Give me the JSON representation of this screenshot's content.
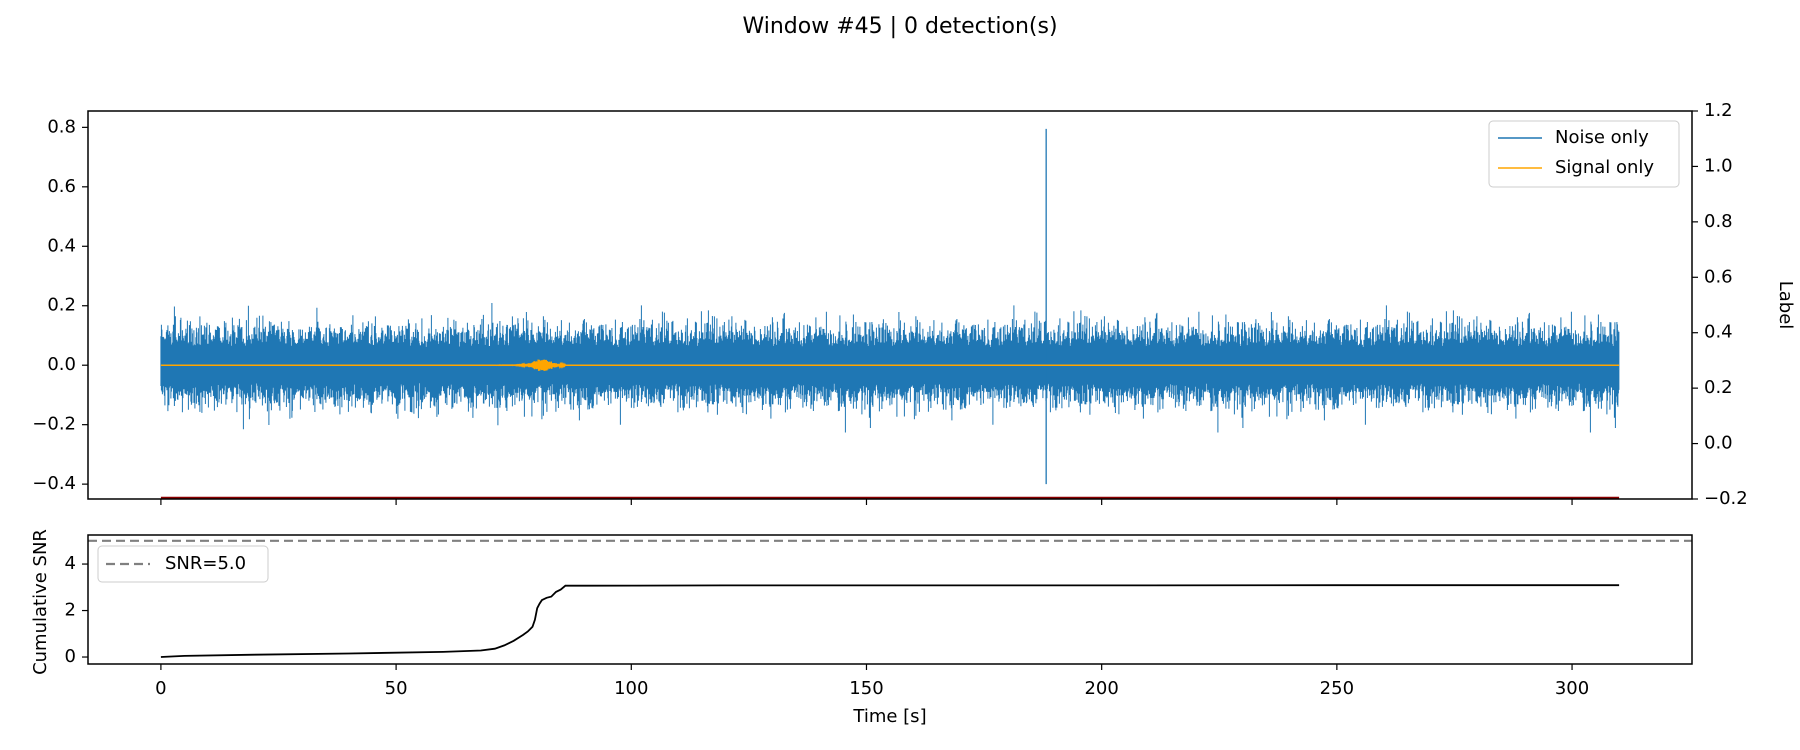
{
  "figure_title": "Window #45 | 0 detection(s)",
  "chart_data": [
    {
      "id": "waveform",
      "type": "line",
      "xlabel": "",
      "ylabel": "",
      "xlim": [
        -15.5,
        325.5
      ],
      "ylim": [
        -0.45,
        0.855
      ],
      "yticks": [
        -0.4,
        -0.2,
        0.0,
        0.2,
        0.4,
        0.6,
        0.8
      ],
      "ytick_labels": [
        "−0.4",
        "−0.2",
        "0.0",
        "0.2",
        "0.4",
        "0.6",
        "0.8"
      ],
      "xticks": [
        0,
        50,
        100,
        150,
        200,
        250,
        300
      ],
      "right_axis": {
        "ylabel": "Label",
        "ylim": [
          -0.2,
          1.2
        ],
        "yticks": [
          -0.2,
          0.0,
          0.2,
          0.4,
          0.6,
          0.8,
          1.0,
          1.2
        ],
        "ytick_labels": [
          "−0.2",
          "0.0",
          "0.2",
          "0.4",
          "0.6",
          "0.8",
          "1.0",
          "1.2"
        ],
        "label_value": -0.2,
        "label_color": "#8b0000"
      },
      "series": [
        {
          "name": "Noise only",
          "color": "#1f77b4",
          "x_range": [
            0,
            310
          ],
          "baseline": 0.0,
          "amplitude_p95": 0.1,
          "min": -0.26,
          "max": 0.28,
          "spikes": [
            {
              "x": 188.2,
              "min": -0.4,
              "max": 0.795
            }
          ]
        },
        {
          "name": "Signal only",
          "color": "#ffa500",
          "x_range": [
            0,
            310
          ],
          "baseline": 0.0,
          "burst": {
            "x_start": 70,
            "x_end": 86,
            "peak_x": 81,
            "peak_amplitude": 0.02
          }
        }
      ],
      "legend": "top-right"
    },
    {
      "id": "snr",
      "type": "line",
      "xlabel": "Time [s]",
      "ylabel": "Cumulative SNR",
      "xlim": [
        -15.5,
        325.5
      ],
      "ylim": [
        -0.3,
        5.25
      ],
      "yticks": [
        0,
        2,
        4
      ],
      "ytick_labels": [
        "0",
        "2",
        "4"
      ],
      "xticks": [
        0,
        50,
        100,
        150,
        200,
        250,
        300
      ],
      "xtick_labels": [
        "0",
        "50",
        "100",
        "150",
        "200",
        "250",
        "300"
      ],
      "threshold": {
        "name": "SNR=5.0",
        "value": 5.0,
        "color": "#808080"
      },
      "series": [
        {
          "name": "",
          "color": "#000000",
          "x": [
            0,
            5,
            20,
            40,
            60,
            68,
            71,
            73,
            75,
            77,
            78,
            79,
            79.5,
            80,
            80.5,
            81,
            82,
            83,
            84,
            85,
            86,
            90,
            120,
            200,
            250,
            310
          ],
          "y": [
            0,
            0.05,
            0.1,
            0.15,
            0.22,
            0.28,
            0.36,
            0.5,
            0.7,
            0.95,
            1.1,
            1.3,
            1.6,
            2.1,
            2.3,
            2.45,
            2.55,
            2.6,
            2.8,
            2.9,
            3.07,
            3.07,
            3.08,
            3.08,
            3.09,
            3.09
          ]
        }
      ],
      "legend": "top-left"
    }
  ]
}
